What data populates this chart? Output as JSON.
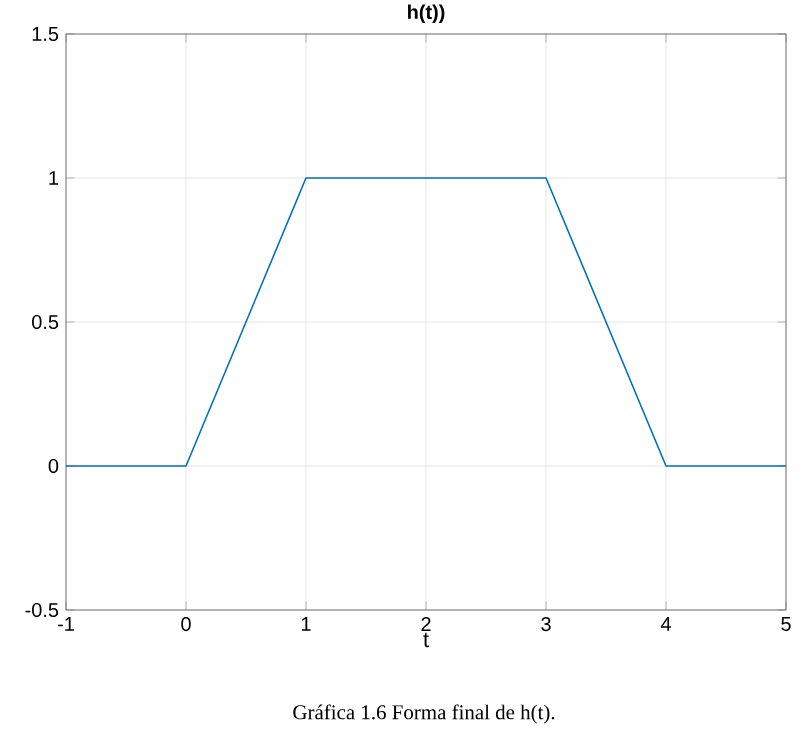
{
  "chart_data": {
    "type": "line",
    "title": "h(t))",
    "xlabel": "t",
    "x": [
      -1,
      0,
      1,
      3,
      4,
      5
    ],
    "series": [
      {
        "color": "#0072bd",
        "values": [
          0,
          0,
          1,
          1,
          0,
          0
        ]
      }
    ],
    "xlim": [
      -1,
      5
    ],
    "ylim": [
      -0.5,
      1.5
    ],
    "xticks": [
      -1,
      0,
      1,
      2,
      3,
      4,
      5
    ],
    "yticks": [
      -0.5,
      0,
      0.5,
      1,
      1.5
    ],
    "grid": true,
    "marker": "none",
    "line_style": "solid",
    "annotations": [
      "Gráfica 1.6 Forma final de h(t)."
    ]
  }
}
